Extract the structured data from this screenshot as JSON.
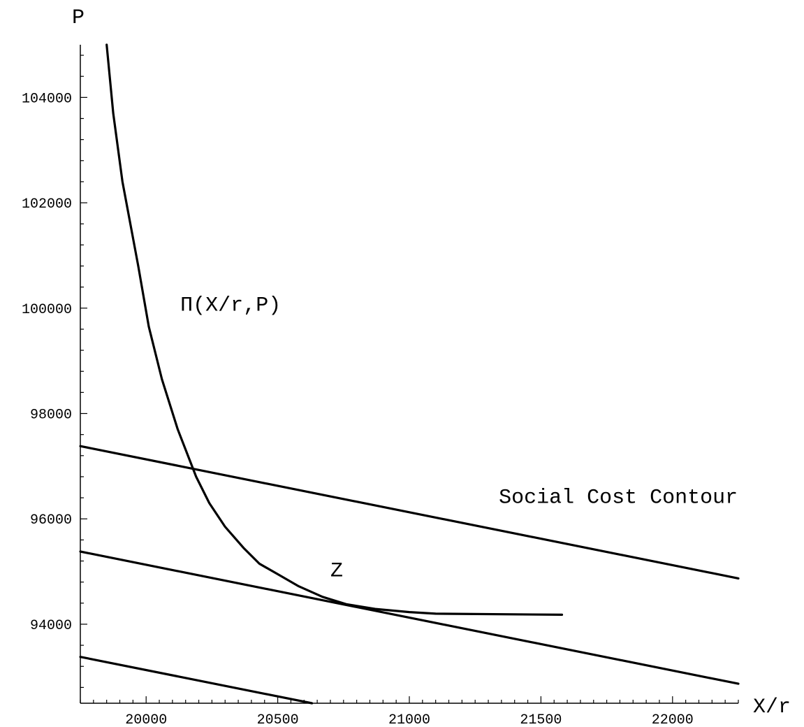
{
  "chart_data": {
    "type": "line",
    "title": "",
    "xlabel": "X/r",
    "ylabel": "P",
    "xlim": [
      19750,
      22250
    ],
    "ylim": [
      92500,
      105000
    ],
    "x_ticks": [
      20000,
      20500,
      21000,
      21500,
      22000
    ],
    "y_ticks": [
      94000,
      96000,
      98000,
      100000,
      102000,
      104000
    ],
    "grid": false,
    "legend": "none",
    "series": [
      {
        "points": [
          [
            19850,
            105000
          ],
          [
            19875,
            103700
          ],
          [
            19910,
            102400
          ],
          [
            19940,
            101600
          ],
          [
            19970,
            100800
          ],
          [
            20010,
            99650
          ],
          [
            20060,
            98650
          ],
          [
            20120,
            97700
          ],
          [
            20190,
            96800
          ],
          [
            20240,
            96300
          ],
          [
            20300,
            95850
          ],
          [
            20370,
            95450
          ],
          [
            20430,
            95150
          ],
          [
            20500,
            94950
          ],
          [
            20580,
            94720
          ],
          [
            20670,
            94520
          ],
          [
            20760,
            94380
          ],
          [
            20870,
            94290
          ],
          [
            21000,
            94230
          ],
          [
            21100,
            94200
          ],
          [
            21580,
            94180
          ]
        ]
      },
      {
        "points": [
          [
            19750,
            97380
          ],
          [
            22250,
            94870
          ]
        ]
      },
      {
        "points": [
          [
            19750,
            95380
          ],
          [
            22250,
            92870
          ]
        ]
      },
      {
        "points": [
          [
            19750,
            93380
          ],
          [
            20630,
            92500
          ]
        ]
      }
    ],
    "annotations": [
      {
        "text": "Π(X/r,P)",
        "x": 20130,
        "y": 99950
      },
      {
        "text": "Social Cost Contour",
        "x": 21340,
        "y": 96300
      },
      {
        "text": "Z",
        "x": 20700,
        "y": 94910
      }
    ]
  }
}
